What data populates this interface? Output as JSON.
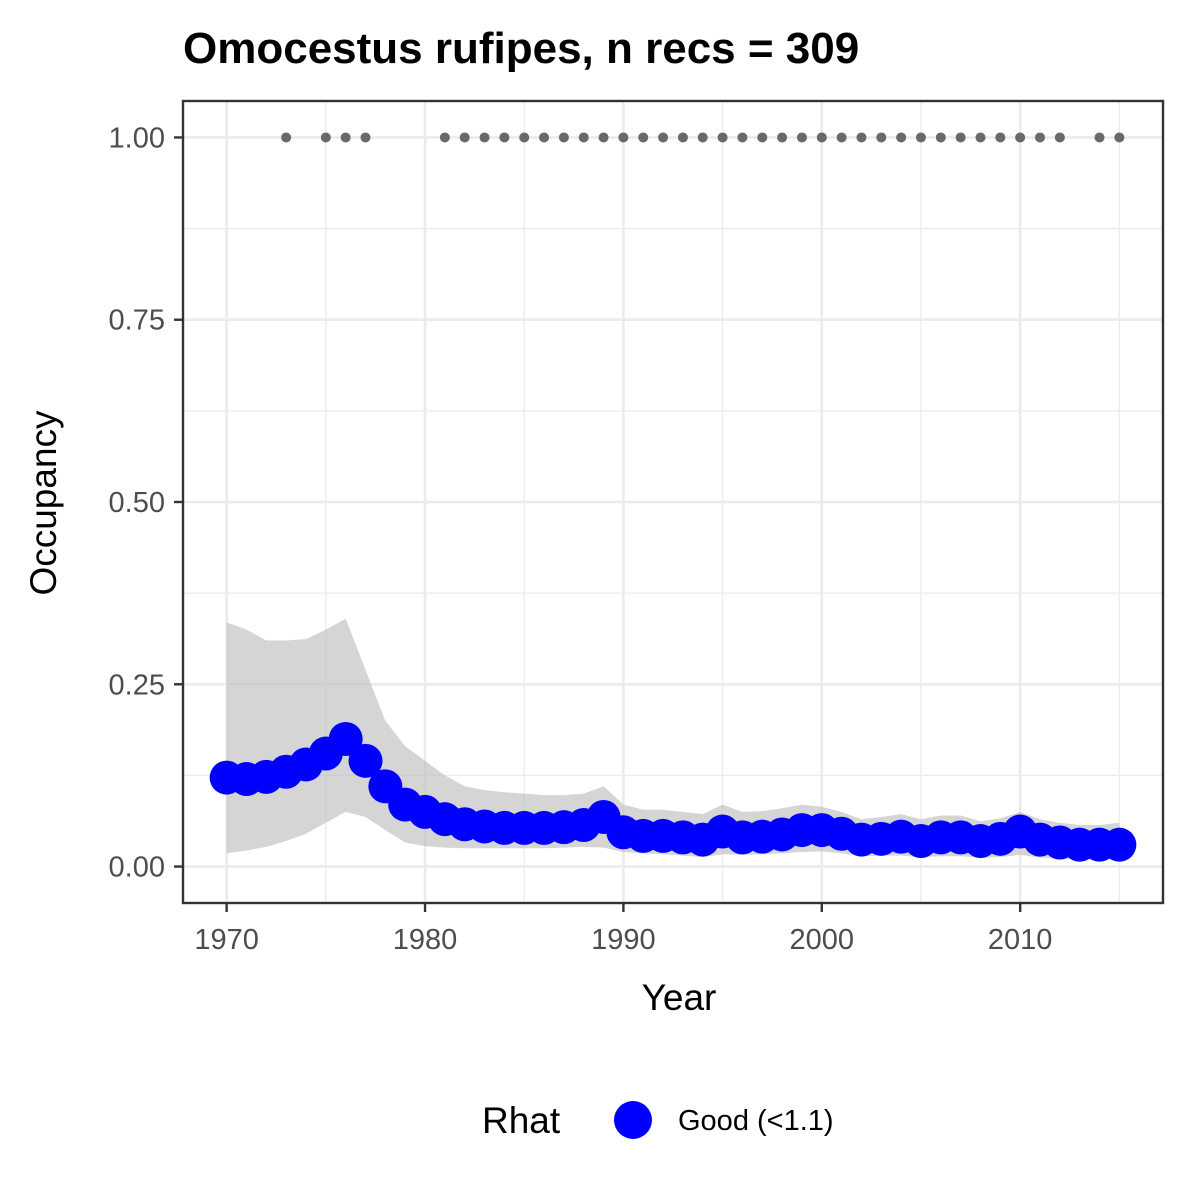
{
  "chart_data": {
    "type": "line",
    "title": "Omocestus rufipes, n recs = 309",
    "xlabel": "Year",
    "ylabel": "Occupancy",
    "xlim": [
      1967.8,
      2017.2
    ],
    "ylim": [
      -0.05,
      1.05
    ],
    "x_ticks": [
      1970,
      1980,
      1990,
      2000,
      2010
    ],
    "x_tick_labels": [
      "1970",
      "1980",
      "1990",
      "2000",
      "2010"
    ],
    "y_ticks": [
      0,
      0.25,
      0.5,
      0.75,
      1.0
    ],
    "y_tick_labels": [
      "0.00",
      "0.25",
      "0.50",
      "0.75",
      "1.00"
    ],
    "grid": true,
    "legend_position": "bottom",
    "legend": {
      "title": "Rhat",
      "entries": [
        {
          "label": "Good (<1.1)",
          "color": "#0000ff"
        }
      ]
    },
    "colors": {
      "series": "#0000ff",
      "ribbon": "#bebebe",
      "records": "#696969",
      "grid": "#ebebeb",
      "panel_border": "#333333"
    },
    "series": [
      {
        "name": "Good (<1.1)",
        "x": [
          1970,
          1971,
          1972,
          1973,
          1974,
          1975,
          1976,
          1977,
          1978,
          1979,
          1980,
          1981,
          1982,
          1983,
          1984,
          1985,
          1986,
          1987,
          1988,
          1989,
          1990,
          1991,
          1992,
          1993,
          1994,
          1995,
          1996,
          1997,
          1998,
          1999,
          2000,
          2001,
          2002,
          2003,
          2004,
          2005,
          2006,
          2007,
          2008,
          2009,
          2010,
          2011,
          2012,
          2013,
          2014,
          2015
        ],
        "y": [
          0.122,
          0.12,
          0.123,
          0.13,
          0.14,
          0.155,
          0.175,
          0.145,
          0.11,
          0.085,
          0.075,
          0.065,
          0.058,
          0.055,
          0.053,
          0.053,
          0.053,
          0.054,
          0.057,
          0.068,
          0.047,
          0.042,
          0.042,
          0.04,
          0.037,
          0.048,
          0.04,
          0.041,
          0.044,
          0.05,
          0.05,
          0.045,
          0.037,
          0.038,
          0.041,
          0.035,
          0.04,
          0.04,
          0.035,
          0.038,
          0.048,
          0.037,
          0.033,
          0.03,
          0.03,
          0.03
        ],
        "lower": [
          0.018,
          0.022,
          0.027,
          0.035,
          0.045,
          0.06,
          0.075,
          0.068,
          0.05,
          0.033,
          0.028,
          0.026,
          0.025,
          0.025,
          0.025,
          0.025,
          0.025,
          0.026,
          0.027,
          0.026,
          0.02,
          0.018,
          0.017,
          0.015,
          0.013,
          0.017,
          0.016,
          0.017,
          0.018,
          0.02,
          0.021,
          0.018,
          0.014,
          0.015,
          0.015,
          0.013,
          0.014,
          0.014,
          0.012,
          0.013,
          0.016,
          0.012,
          0.011,
          0.01,
          0.01,
          0.01
        ],
        "upper": [
          0.335,
          0.325,
          0.31,
          0.31,
          0.312,
          0.325,
          0.34,
          0.27,
          0.2,
          0.165,
          0.145,
          0.125,
          0.11,
          0.105,
          0.102,
          0.1,
          0.098,
          0.098,
          0.1,
          0.11,
          0.085,
          0.078,
          0.078,
          0.075,
          0.072,
          0.085,
          0.075,
          0.076,
          0.08,
          0.085,
          0.082,
          0.075,
          0.065,
          0.068,
          0.072,
          0.065,
          0.07,
          0.07,
          0.062,
          0.066,
          0.075,
          0.065,
          0.06,
          0.057,
          0.057,
          0.06
        ]
      }
    ],
    "record_years": [
      1973,
      1975,
      1976,
      1977,
      1981,
      1982,
      1983,
      1984,
      1985,
      1986,
      1987,
      1988,
      1989,
      1990,
      1991,
      1992,
      1993,
      1994,
      1995,
      1996,
      1997,
      1998,
      1999,
      2000,
      2001,
      2002,
      2003,
      2004,
      2005,
      2006,
      2007,
      2008,
      2009,
      2010,
      2011,
      2012,
      2014,
      2015
    ],
    "record_value": 1.0
  }
}
